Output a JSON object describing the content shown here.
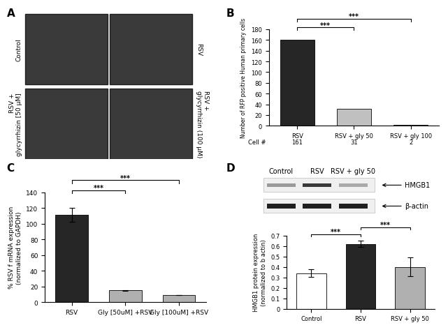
{
  "panel_a": {
    "title": "A",
    "images": [
      {
        "label": "Control"
      },
      {
        "label": "RSV"
      },
      {
        "label": "RSV +\nglycyrrhizin [50 µM]"
      },
      {
        "label": "RSV +\nglycyrrhizin (100 µM)"
      }
    ]
  },
  "blot": {
    "columns": [
      "Control",
      "RSV",
      "RSV + gly 50"
    ],
    "bands": [
      "HMGB1",
      "β-actin"
    ]
  },
  "chart_data": [
    {
      "title": "B",
      "type": "bar",
      "ylabel": "Number of RFP positive Human primary cells",
      "categories": [
        "RSV",
        "RSV + gly 50",
        "RSV + gly 100"
      ],
      "values": [
        161,
        31,
        2
      ],
      "colors": [
        "#262626",
        "#c0c0c0",
        "#c0c0c0"
      ],
      "ylim": [
        0,
        180
      ],
      "yticks": [
        0,
        20,
        40,
        60,
        80,
        100,
        120,
        140,
        160,
        180
      ],
      "table": {
        "row_label": "Cell #",
        "cells": [
          "161",
          "31",
          "2"
        ]
      },
      "significance": [
        {
          "from": "RSV",
          "to": "RSV + gly 50",
          "label": "***"
        },
        {
          "from": "RSV",
          "to": "RSV + gly 100",
          "label": "***"
        }
      ]
    },
    {
      "title": "C",
      "type": "bar",
      "ylabel": "% RSV f mRNA expression\n(normalized to GAPDH)",
      "categories": [
        "RSV",
        "Gly [50uM] +RSV",
        "Gly [100uM] +RSV"
      ],
      "values": [
        111,
        15,
        9
      ],
      "errors": [
        9,
        0.5,
        0.3
      ],
      "colors": [
        "#262626",
        "#b0b0b0",
        "#b0b0b0"
      ],
      "ylim": [
        0,
        140
      ],
      "yticks": [
        0,
        20,
        40,
        60,
        80,
        100,
        120,
        140
      ],
      "significance": [
        {
          "from": "RSV",
          "to": "Gly [50uM] +RSV",
          "label": "***"
        },
        {
          "from": "RSV",
          "to": "Gly [100uM] +RSV",
          "label": "***"
        }
      ]
    },
    {
      "title": "D",
      "type": "bar",
      "ylabel": "HMGB1 protein expression\n(normalized to b actin)",
      "categories": [
        "Control",
        "RSV",
        "RSV + gly 50"
      ],
      "values": [
        0.34,
        0.62,
        0.4
      ],
      "errors": [
        0.035,
        0.03,
        0.09
      ],
      "colors": [
        "#ffffff",
        "#262626",
        "#b0b0b0"
      ],
      "ylim": [
        0,
        0.7
      ],
      "yticks": [
        0,
        0.1,
        0.2,
        0.3,
        0.4,
        0.5,
        0.6,
        0.7
      ],
      "significance": [
        {
          "from": "Control",
          "to": "RSV",
          "label": "***"
        },
        {
          "from": "RSV",
          "to": "RSV + gly 50",
          "label": "***"
        }
      ]
    }
  ]
}
